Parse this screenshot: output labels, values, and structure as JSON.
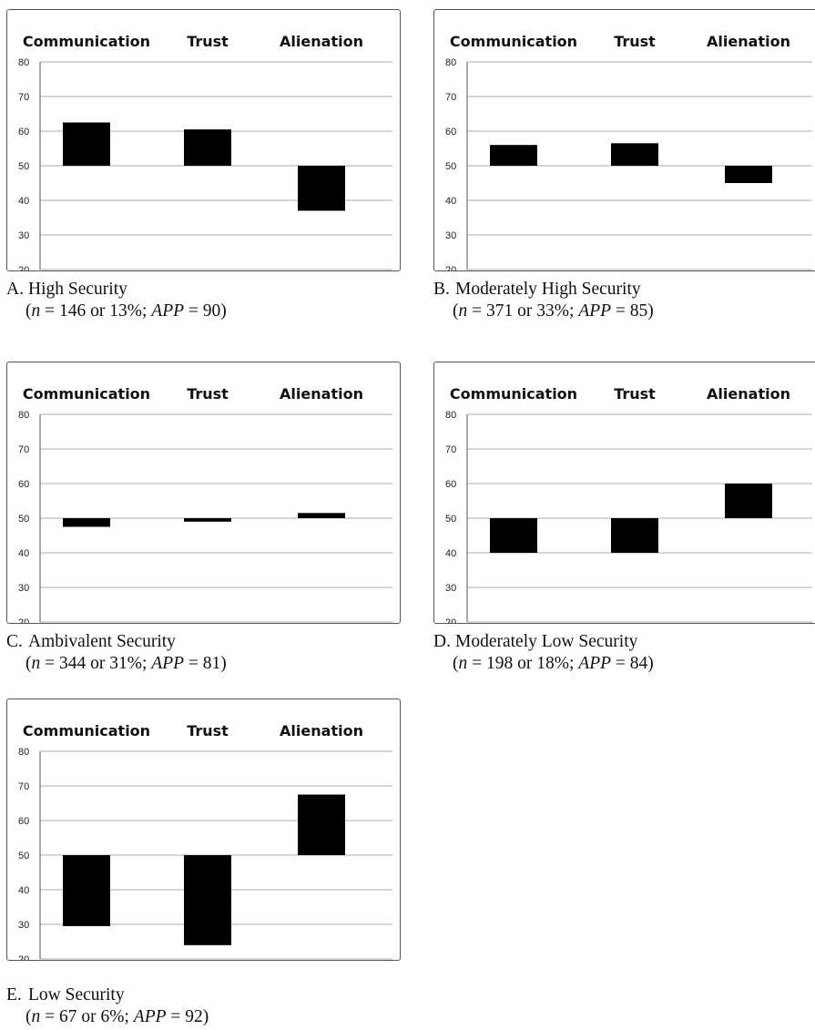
{
  "chart_data": [
    {
      "type": "bar",
      "categories": [
        "Communication",
        "Trust",
        "Alienation"
      ],
      "baseline": 50,
      "values": [
        62.5,
        60.5,
        37
      ],
      "ylim": [
        20,
        80
      ],
      "yticks": [
        20,
        30,
        40,
        50,
        60,
        70,
        80
      ],
      "grid": true,
      "caption": {
        "letter": "A.",
        "title": "High Security",
        "n": "146",
        "pct": "13%",
        "app": "90"
      }
    },
    {
      "type": "bar",
      "categories": [
        "Communication",
        "Trust",
        "Alienation"
      ],
      "baseline": 50,
      "values": [
        56,
        56.5,
        45
      ],
      "ylim": [
        20,
        80
      ],
      "yticks": [
        20,
        30,
        40,
        50,
        60,
        70,
        80
      ],
      "grid": true,
      "caption": {
        "letter": "B.",
        "title": "Moderately High Security",
        "n": "371",
        "pct": "33%",
        "app": "85"
      }
    },
    {
      "type": "bar",
      "categories": [
        "Communication",
        "Trust",
        "Alienation"
      ],
      "baseline": 50,
      "values": [
        47.5,
        49,
        51.5
      ],
      "ylim": [
        20,
        80
      ],
      "yticks": [
        20,
        30,
        40,
        50,
        60,
        70,
        80
      ],
      "grid": true,
      "caption": {
        "letter": "C.",
        "title": "Ambivalent Security",
        "n": "344",
        "pct": "31%",
        "app": "81"
      }
    },
    {
      "type": "bar",
      "categories": [
        "Communication",
        "Trust",
        "Alienation"
      ],
      "baseline": 50,
      "values": [
        40,
        40,
        60
      ],
      "ylim": [
        20,
        80
      ],
      "yticks": [
        20,
        30,
        40,
        50,
        60,
        70,
        80
      ],
      "grid": true,
      "caption": {
        "letter": "D.",
        "title": "Moderately Low Security",
        "n": "198",
        "pct": "18%",
        "app": "84"
      }
    },
    {
      "type": "bar",
      "categories": [
        "Communication",
        "Trust",
        "Alienation"
      ],
      "baseline": 50,
      "values": [
        29.5,
        24,
        67.5
      ],
      "ylim": [
        20,
        80
      ],
      "yticks": [
        20,
        30,
        40,
        50,
        60,
        70,
        80
      ],
      "grid": true,
      "caption": {
        "letter": "E.",
        "title": "Low Security",
        "n": "67",
        "pct": "6%",
        "app": "92"
      }
    }
  ],
  "colors": {
    "bar": "#000000",
    "grid": "#bdbdbd",
    "axis": "#555555",
    "border": "#555555"
  }
}
